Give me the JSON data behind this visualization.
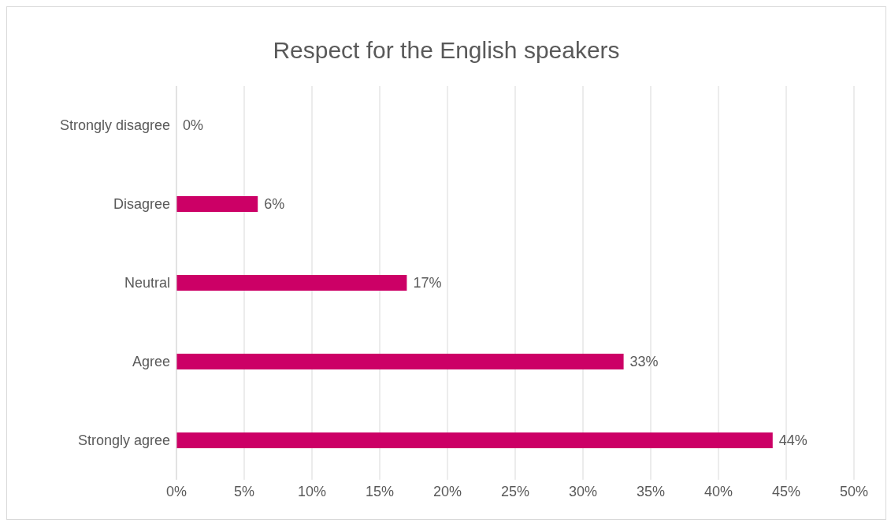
{
  "chart_data": {
    "type": "bar",
    "orientation": "horizontal",
    "title": "Respect for the English speakers",
    "categories": [
      "Strongly disagree",
      "Disagree",
      "Neutral",
      "Agree",
      "Strongly agree"
    ],
    "values": [
      0,
      6,
      17,
      33,
      44
    ],
    "value_labels": [
      "0%",
      "6%",
      "17%",
      "33%",
      "44%"
    ],
    "color": "#cc0066",
    "xlim": [
      0,
      50
    ],
    "xticks": [
      {
        "value": 0,
        "label": "0%"
      },
      {
        "value": 5,
        "label": "5%"
      },
      {
        "value": 10,
        "label": "10%"
      },
      {
        "value": 15,
        "label": "15%"
      },
      {
        "value": 20,
        "label": "20%"
      },
      {
        "value": 25,
        "label": "25%"
      },
      {
        "value": 30,
        "label": "30%"
      },
      {
        "value": 35,
        "label": "35%"
      },
      {
        "value": 40,
        "label": "40%"
      },
      {
        "value": 45,
        "label": "45%"
      },
      {
        "value": 50,
        "label": "50%"
      }
    ],
    "grid": "x"
  }
}
